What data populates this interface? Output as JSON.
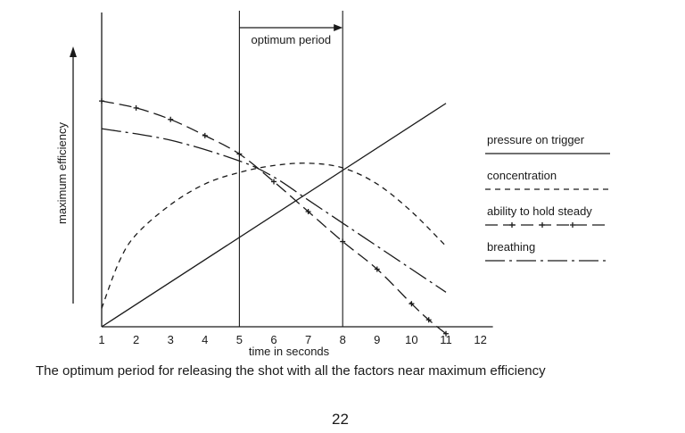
{
  "caption": "The optimum period for releasing the shot with all the factors near maximum efficiency",
  "page_number": "22",
  "chart_data": {
    "type": "line",
    "title": "",
    "xlabel": "time in seconds",
    "ylabel": "maximum efficiency",
    "xlim": [
      1,
      12
    ],
    "ylim": [
      0,
      100
    ],
    "grid": false,
    "legend_position": "right",
    "x_ticks": [
      "1",
      "2",
      "3",
      "4",
      "5",
      "6",
      "7",
      "8",
      "9",
      "10",
      "11",
      "12"
    ],
    "annotation": {
      "label": "optimum period",
      "x_start": 5,
      "x_end": 8
    },
    "series": [
      {
        "name": "pressure on trigger",
        "style": "solid",
        "x": [
          1,
          11
        ],
        "y": [
          0,
          97
        ]
      },
      {
        "name": "concentration",
        "style": "dashed",
        "x": [
          1,
          1.5,
          2,
          3,
          4,
          5,
          6,
          7,
          8,
          9,
          10,
          11
        ],
        "y": [
          8,
          28,
          40,
          53,
          62,
          67,
          70,
          71,
          69,
          62,
          50,
          35
        ]
      },
      {
        "name": "ability to hold steady",
        "style": "dash-cross",
        "x": [
          1,
          2,
          3,
          4,
          5,
          6,
          7,
          8,
          9,
          10,
          10.5,
          11
        ],
        "y": [
          98,
          95,
          90,
          83,
          75,
          63,
          50,
          37,
          25,
          10,
          3,
          -3
        ]
      },
      {
        "name": "breathing",
        "style": "dash-dot",
        "x": [
          1,
          3,
          5,
          6,
          7,
          8,
          9,
          10,
          11
        ],
        "y": [
          86,
          81,
          72,
          65,
          55,
          45,
          35,
          25,
          15
        ]
      }
    ]
  }
}
